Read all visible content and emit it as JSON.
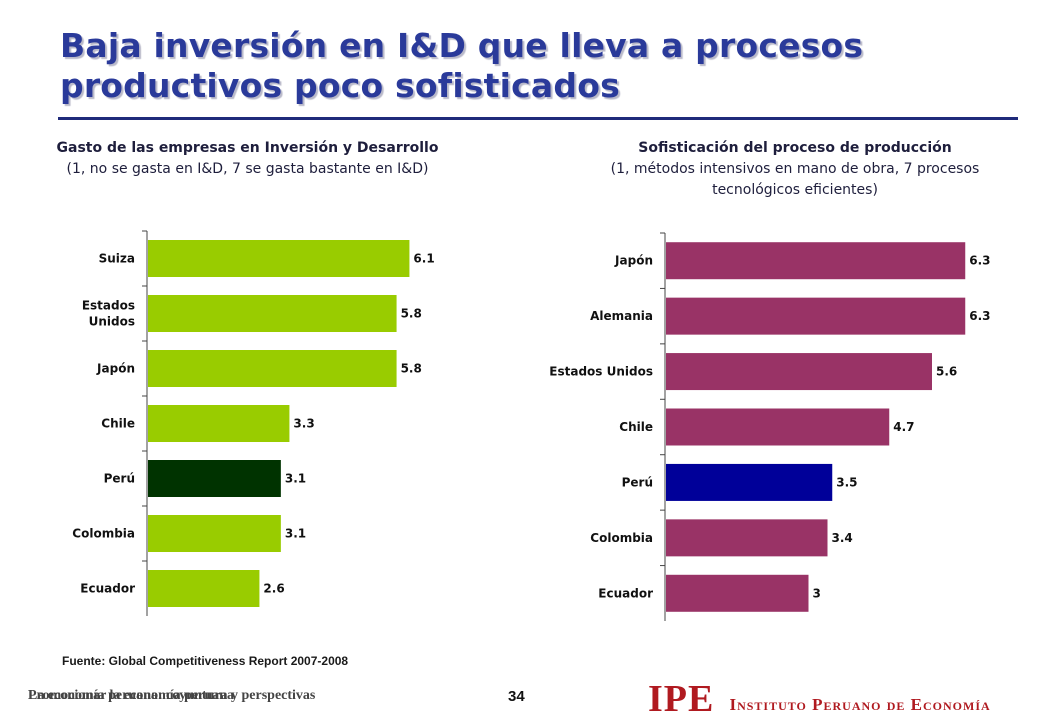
{
  "slide": {
    "title_line1": "Baja inversión en I&D que lleva a procesos",
    "title_line2": "productivos poco sofisticados",
    "source": "Fuente: Global Competitiveness Report 2007-2008",
    "footer_text_a": "La economía peruana: coyuntura y perspectivas",
    "footer_text_b": "Promocionar la economía peruana",
    "page_number": "34",
    "logo_abbrev": "IPE",
    "logo_name": "Instituto Peruano de Economía"
  },
  "colors": {
    "title": "#2a3a9a",
    "left_bar": "#99cc00",
    "left_highlight": "#003300",
    "right_bar": "#993366",
    "right_highlight": "#000099",
    "logo": "#b01a20"
  },
  "chart_data": [
    {
      "type": "bar",
      "orientation": "horizontal",
      "title": "Gasto de las empresas en Inversión y Desarrollo",
      "subtitle": "(1, no se gasta en I&D, 7 se gasta bastante en I&D)",
      "categories": [
        "Suiza",
        "Estados Unidos",
        "Japón",
        "Chile",
        "Perú",
        "Colombia",
        "Ecuador"
      ],
      "category_lines": [
        [
          "Suiza"
        ],
        [
          "Estados",
          "Unidos"
        ],
        [
          "Japón"
        ],
        [
          "Chile"
        ],
        [
          "Perú"
        ],
        [
          "Colombia"
        ],
        [
          "Ecuador"
        ]
      ],
      "values": [
        6.1,
        5.8,
        5.8,
        3.3,
        3.1,
        3.1,
        2.6
      ],
      "value_labels": [
        "6.1",
        "5.8",
        "5.8",
        "3.3",
        "3.1",
        "3.1",
        "2.6"
      ],
      "highlight": "Perú",
      "xlim": [
        0,
        7
      ]
    },
    {
      "type": "bar",
      "orientation": "horizontal",
      "title": "Sofisticación del proceso de producción",
      "subtitle": "(1, métodos intensivos en mano de obra, 7 procesos tecnológicos eficientes)",
      "categories": [
        "Japón",
        "Alemania",
        "Estados Unidos",
        "Chile",
        "Perú",
        "Colombia",
        "Ecuador"
      ],
      "category_lines": [
        [
          "Japón"
        ],
        [
          "Alemania"
        ],
        [
          "Estados Unidos"
        ],
        [
          "Chile"
        ],
        [
          "Perú"
        ],
        [
          "Colombia"
        ],
        [
          "Ecuador"
        ]
      ],
      "values": [
        6.3,
        6.3,
        5.6,
        4.7,
        3.5,
        3.4,
        3
      ],
      "value_labels": [
        "6.3",
        "6.3",
        "5.6",
        "4.7",
        "3.5",
        "3.4",
        "3"
      ],
      "highlight": "Perú",
      "xlim": [
        0,
        7.2
      ]
    }
  ]
}
